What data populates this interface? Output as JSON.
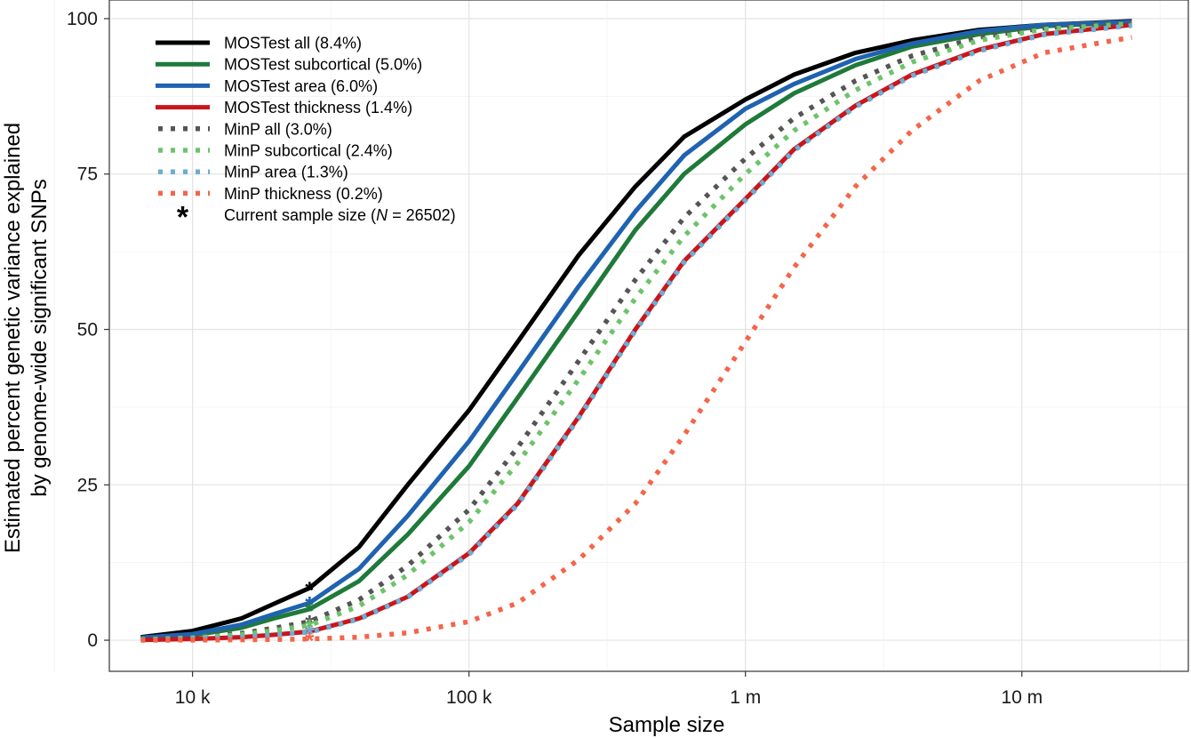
{
  "chart_data": {
    "type": "line",
    "xlabel": "Sample size",
    "ylabel_line1": "Estimated percent genetic variance explained",
    "ylabel_line2": "by genome-wide significant SNPs",
    "xscale": "log10",
    "xlim": [
      5000,
      40000000
    ],
    "ylim": [
      -5,
      103
    ],
    "x_ticks": [
      {
        "value": 10000,
        "label": "10 k"
      },
      {
        "value": 100000,
        "label": "100 k"
      },
      {
        "value": 1000000,
        "label": "1 m"
      },
      {
        "value": 10000000,
        "label": "10 m"
      }
    ],
    "y_ticks": [
      {
        "value": 0,
        "label": "0"
      },
      {
        "value": 25,
        "label": "25"
      },
      {
        "value": 50,
        "label": "50"
      },
      {
        "value": 75,
        "label": "75"
      },
      {
        "value": 100,
        "label": "100"
      }
    ],
    "grid": true,
    "legend_position": "top-left",
    "current_sample_size": 26502,
    "x": [
      6500,
      10000,
      15000,
      20000,
      26502,
      40000,
      60000,
      100000,
      150000,
      250000,
      400000,
      600000,
      1000000,
      1500000,
      2500000,
      4000000,
      7000000,
      12000000,
      25000000
    ],
    "series": [
      {
        "name": "MOSTest all (8.4%)",
        "style": "solid",
        "color": "#000000",
        "current_value": 8.4,
        "values": [
          0.5,
          1.5,
          3.5,
          6.0,
          8.4,
          15,
          25,
          37,
          48,
          62,
          73,
          81,
          87,
          91,
          94.5,
          96.5,
          98.2,
          99,
          99.6
        ]
      },
      {
        "name": "MOSTest subcortical (5.0%)",
        "style": "solid",
        "color": "#1f7a3a",
        "current_value": 5.0,
        "values": [
          0.3,
          0.8,
          2.0,
          3.6,
          5.0,
          9.5,
          17,
          28,
          39,
          53,
          66,
          75,
          83,
          88,
          92.5,
          95.5,
          97.5,
          98.8,
          99.4
        ]
      },
      {
        "name": "MOSTest area (6.0%)",
        "style": "solid",
        "color": "#1f63b0",
        "current_value": 6.0,
        "values": [
          0.4,
          1.0,
          2.5,
          4.3,
          6.0,
          11.5,
          20,
          32,
          43,
          57,
          69,
          78,
          85.5,
          89.5,
          93.5,
          96,
          98,
          99,
          99.5
        ]
      },
      {
        "name": "MOSTest thickness (1.4%)",
        "style": "solid",
        "color": "#c8161d",
        "current_value": 1.4,
        "values": [
          0.05,
          0.2,
          0.5,
          0.9,
          1.4,
          3.5,
          7,
          14,
          22,
          36,
          50,
          61,
          71,
          79,
          86,
          91,
          95,
          97.5,
          99
        ]
      },
      {
        "name": "MinP all (3.0%)",
        "style": "dotted",
        "color": "#555555",
        "current_value": 3.0,
        "values": [
          0.15,
          0.5,
          1.1,
          2.0,
          3.0,
          6.5,
          12,
          21,
          31,
          45,
          58,
          68,
          77.5,
          84,
          90,
          94,
          97,
          98.5,
          99.3
        ]
      },
      {
        "name": "MinP subcortical (2.4%)",
        "style": "dotted",
        "color": "#6cc46a",
        "current_value": 2.4,
        "values": [
          0.1,
          0.4,
          0.9,
          1.6,
          2.4,
          5.5,
          10.5,
          19,
          28.5,
          42,
          55,
          65,
          75,
          82,
          88.5,
          93,
          96.5,
          98.3,
          99.2
        ]
      },
      {
        "name": "MinP area (1.3%)",
        "style": "dotted",
        "color": "#6baed6",
        "current_value": 1.3,
        "values": [
          0.05,
          0.2,
          0.5,
          0.9,
          1.3,
          3.4,
          6.9,
          13.8,
          21.8,
          35.8,
          49.8,
          60.8,
          70.8,
          78.8,
          85.8,
          90.8,
          94.8,
          97.4,
          98.9
        ]
      },
      {
        "name": "MinP thickness (0.2%)",
        "style": "dotted",
        "color": "#f4654a",
        "current_value": 0.2,
        "values": [
          0,
          0.02,
          0.06,
          0.12,
          0.2,
          0.5,
          1.2,
          3,
          6,
          13,
          22,
          33,
          48,
          60,
          73,
          82,
          90,
          94.5,
          97
        ]
      }
    ],
    "legend_extra": {
      "marker": "*",
      "label_prefix": "Current sample size (",
      "label_italic": "N",
      "label_suffix": " = 26502)"
    }
  }
}
